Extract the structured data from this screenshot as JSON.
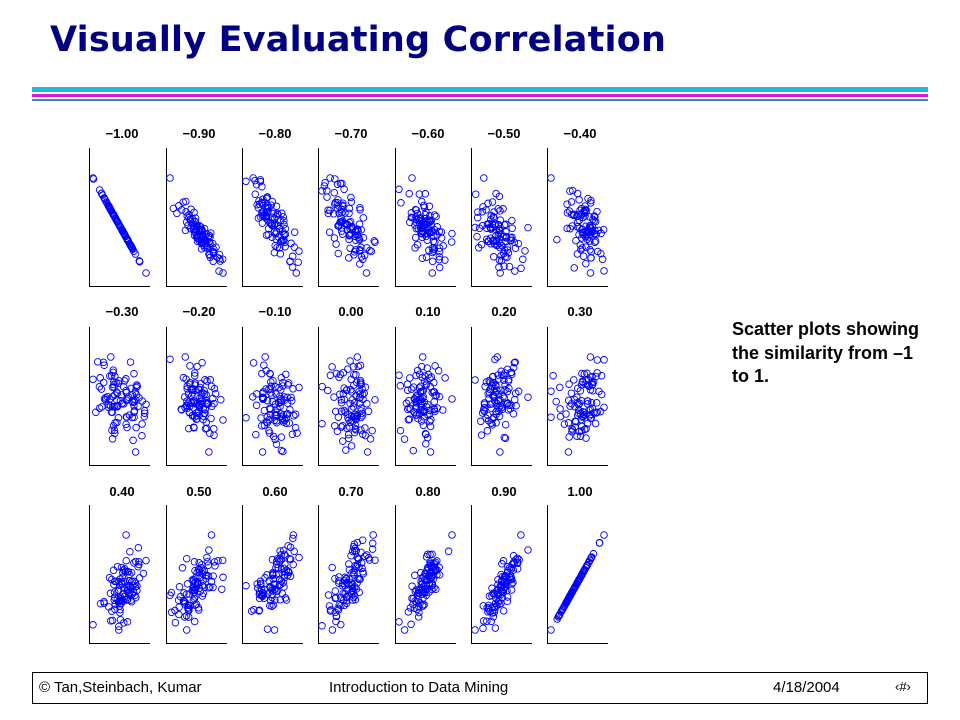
{
  "slide": {
    "title": "Visually Evaluating Correlation",
    "caption": "Scatter plots showing the similarity from –1 to 1."
  },
  "footer": {
    "copyright": "© Tan,Steinbach, Kumar",
    "book": "Introduction to Data Mining",
    "date": "4/18/2004",
    "page_glyph": "‹#›"
  },
  "colors": {
    "title": "#000080",
    "marker": "#0000ff",
    "rule_cyan": "#22b8d8",
    "rule_magenta": "#d51fd0",
    "rule_blue": "#3f78d8"
  },
  "chart_data": {
    "type": "scatter",
    "layout": "small multiples, 3 rows x 7 columns",
    "marker": "hollow circle",
    "axes": "left and bottom axis lines only, no ticks, no grid",
    "panels": [
      {
        "label": "−1.00",
        "r": -1.0
      },
      {
        "label": "−0.90",
        "r": -0.9
      },
      {
        "label": "−0.80",
        "r": -0.8
      },
      {
        "label": "−0.70",
        "r": -0.7
      },
      {
        "label": "−0.60",
        "r": -0.6
      },
      {
        "label": "−0.50",
        "r": -0.5
      },
      {
        "label": "−0.40",
        "r": -0.4
      },
      {
        "label": "−0.30",
        "r": -0.3
      },
      {
        "label": "−0.20",
        "r": -0.2
      },
      {
        "label": "−0.10",
        "r": -0.1
      },
      {
        "label": "0.00",
        "r": 0.0
      },
      {
        "label": "0.10",
        "r": 0.1
      },
      {
        "label": "0.20",
        "r": 0.2
      },
      {
        "label": "0.30",
        "r": 0.3
      },
      {
        "label": "0.40",
        "r": 0.4
      },
      {
        "label": "0.50",
        "r": 0.5
      },
      {
        "label": "0.60",
        "r": 0.6
      },
      {
        "label": "0.70",
        "r": 0.7
      },
      {
        "label": "0.80",
        "r": 0.8
      },
      {
        "label": "0.90",
        "r": 0.9
      },
      {
        "label": "1.00",
        "r": 1.0
      }
    ]
  }
}
